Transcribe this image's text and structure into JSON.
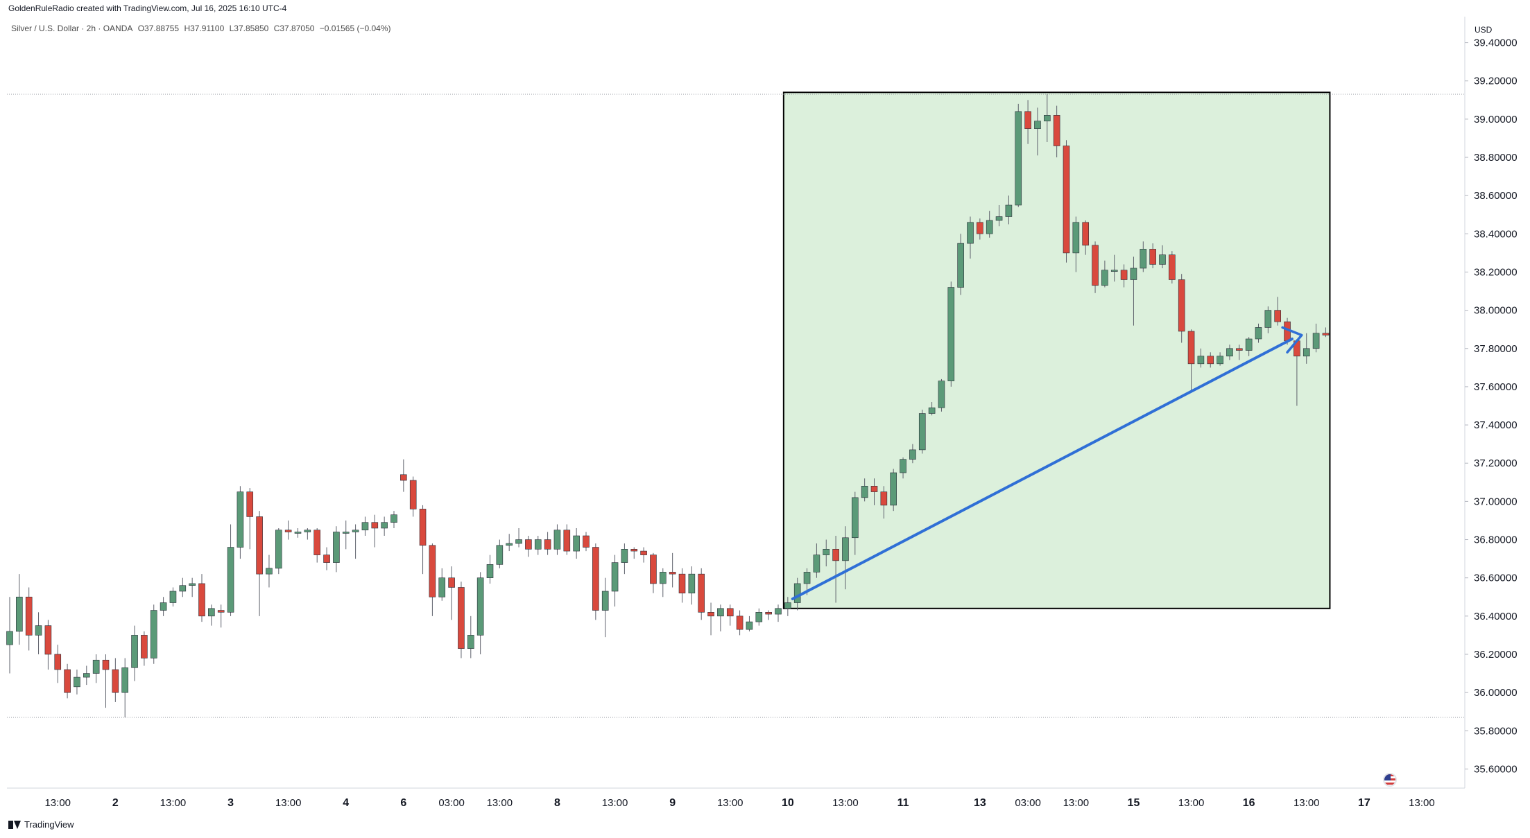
{
  "header": {
    "attribution": "GoldenRuleRadio created with TradingView.com, Jul 16, 2025 16:10 UTC-4",
    "symbol": "Silver / U.S. Dollar · 2h · OANDA",
    "open": "O37.88755",
    "high": "H37.91100",
    "low": "L37.85850",
    "close": "C37.87050",
    "change": "−0.01565 (−0.04%)"
  },
  "axis": {
    "unit": "USD"
  },
  "branding": {
    "label": "TradingView"
  },
  "colors": {
    "up": "#5b9a78",
    "down": "#d9493d",
    "zone_fill": "#dcf0dc",
    "trendline": "#2f6fd6"
  },
  "chart_data": {
    "type": "candlestick",
    "ylim": [
      35.5,
      39.5
    ],
    "y_ticks": [
      "39.40000",
      "39.20000",
      "39.00000",
      "38.80000",
      "38.60000",
      "38.40000",
      "38.20000",
      "38.00000",
      "37.80000",
      "37.60000",
      "37.40000",
      "37.20000",
      "37.00000",
      "36.80000",
      "36.60000",
      "36.40000",
      "36.20000",
      "36.00000",
      "35.80000",
      "35.60000"
    ],
    "x_ticks": [
      {
        "i": 5,
        "label": "13:00"
      },
      {
        "i": 11,
        "label": "2"
      },
      {
        "i": 17,
        "label": "13:00"
      },
      {
        "i": 23,
        "label": "3"
      },
      {
        "i": 29,
        "label": "13:00"
      },
      {
        "i": 35,
        "label": "4"
      },
      {
        "i": 41,
        "label": "6"
      },
      {
        "i": 46,
        "label": "03:00"
      },
      {
        "i": 51,
        "label": "13:00"
      },
      {
        "i": 57,
        "label": "8"
      },
      {
        "i": 63,
        "label": "13:00"
      },
      {
        "i": 69,
        "label": "9"
      },
      {
        "i": 75,
        "label": "13:00"
      },
      {
        "i": 81,
        "label": "10"
      },
      {
        "i": 87,
        "label": "13:00"
      },
      {
        "i": 93,
        "label": "11"
      },
      {
        "i": 101,
        "label": "13"
      },
      {
        "i": 106,
        "label": "03:00"
      },
      {
        "i": 111,
        "label": "13:00"
      },
      {
        "i": 117,
        "label": "15"
      },
      {
        "i": 123,
        "label": "13:00"
      },
      {
        "i": 129,
        "label": "16"
      },
      {
        "i": 135,
        "label": "13:00"
      },
      {
        "i": 141,
        "label": "17"
      },
      {
        "i": 147,
        "label": "13:00"
      }
    ],
    "reference_lines": [
      39.13,
      35.87
    ],
    "highlight_zone": {
      "from_index": 81,
      "to_index": 137,
      "low": 36.44,
      "high": 39.14
    },
    "trendline": {
      "from": [
        81.5,
        36.49
      ],
      "to": [
        133.5,
        37.85
      ],
      "arrow": [
        [
          132.5,
          37.91
        ],
        [
          134.5,
          37.87
        ],
        [
          133.0,
          37.78
        ]
      ]
    },
    "candles": [
      [
        36.25,
        36.32,
        36.5,
        36.1
      ],
      [
        36.32,
        36.5,
        36.62,
        36.25
      ],
      [
        36.5,
        36.3,
        36.55,
        36.22
      ],
      [
        36.3,
        36.35,
        36.42,
        36.2
      ],
      [
        36.35,
        36.2,
        36.38,
        36.12
      ],
      [
        36.2,
        36.12,
        36.25,
        36.05
      ],
      [
        36.12,
        36.0,
        36.15,
        35.97
      ],
      [
        36.03,
        36.08,
        36.12,
        35.99
      ],
      [
        36.08,
        36.1,
        36.14,
        36.04
      ],
      [
        36.1,
        36.17,
        36.2,
        36.05
      ],
      [
        36.17,
        36.12,
        36.2,
        35.92
      ],
      [
        36.12,
        36.0,
        36.18,
        35.95
      ],
      [
        36.0,
        36.13,
        36.18,
        35.87
      ],
      [
        36.13,
        36.3,
        36.35,
        36.06
      ],
      [
        36.3,
        36.18,
        36.32,
        36.14
      ],
      [
        36.18,
        36.43,
        36.46,
        36.15
      ],
      [
        36.43,
        36.47,
        36.5,
        36.4
      ],
      [
        36.47,
        36.53,
        36.55,
        36.45
      ],
      [
        36.53,
        36.56,
        36.6,
        36.5
      ],
      [
        36.56,
        36.57,
        36.6,
        36.5
      ],
      [
        36.57,
        36.4,
        36.62,
        36.37
      ],
      [
        36.4,
        36.44,
        36.46,
        36.35
      ],
      [
        36.43,
        36.42,
        36.46,
        36.34
      ],
      [
        36.42,
        36.76,
        36.88,
        36.4
      ],
      [
        36.76,
        37.05,
        37.08,
        36.7
      ],
      [
        37.05,
        36.92,
        37.07,
        36.75
      ],
      [
        36.92,
        36.62,
        36.95,
        36.4
      ],
      [
        36.62,
        36.65,
        36.72,
        36.55
      ],
      [
        36.65,
        36.85,
        36.86,
        36.62
      ],
      [
        36.85,
        36.84,
        36.9,
        36.8
      ],
      [
        36.84,
        36.84,
        36.86,
        36.81
      ],
      [
        36.84,
        36.85,
        36.86,
        36.8
      ],
      [
        36.85,
        36.72,
        36.86,
        36.68
      ],
      [
        36.72,
        36.68,
        36.76,
        36.64
      ],
      [
        36.68,
        36.84,
        36.87,
        36.63
      ],
      [
        36.84,
        36.84,
        36.9,
        36.75
      ],
      [
        36.84,
        36.85,
        36.88,
        36.7
      ],
      [
        36.85,
        36.89,
        36.92,
        36.82
      ],
      [
        36.89,
        36.86,
        36.93,
        36.76
      ],
      [
        36.86,
        36.89,
        36.92,
        36.82
      ],
      [
        36.89,
        36.93,
        36.95,
        36.86
      ],
      [
        37.14,
        37.11,
        37.22,
        37.05
      ],
      [
        37.11,
        36.96,
        37.13,
        36.92
      ],
      [
        36.96,
        36.77,
        36.98,
        36.62
      ],
      [
        36.77,
        36.5,
        36.78,
        36.4
      ],
      [
        36.5,
        36.6,
        36.65,
        36.48
      ],
      [
        36.6,
        36.55,
        36.66,
        36.38
      ],
      [
        36.55,
        36.23,
        36.58,
        36.18
      ],
      [
        36.23,
        36.3,
        36.4,
        36.18
      ],
      [
        36.3,
        36.6,
        36.63,
        36.2
      ],
      [
        36.6,
        36.67,
        36.72,
        36.57
      ],
      [
        36.67,
        36.77,
        36.8,
        36.65
      ],
      [
        36.77,
        36.78,
        36.83,
        36.74
      ],
      [
        36.78,
        36.8,
        36.86,
        36.76
      ],
      [
        36.8,
        36.75,
        36.82,
        36.71
      ],
      [
        36.75,
        36.8,
        36.82,
        36.72
      ],
      [
        36.8,
        36.75,
        36.84,
        36.72
      ],
      [
        36.75,
        36.85,
        36.88,
        36.72
      ],
      [
        36.85,
        36.74,
        36.88,
        36.72
      ],
      [
        36.74,
        36.82,
        36.86,
        36.7
      ],
      [
        36.82,
        36.76,
        36.84,
        36.74
      ],
      [
        36.76,
        36.43,
        36.78,
        36.38
      ],
      [
        36.43,
        36.53,
        36.6,
        36.29
      ],
      [
        36.53,
        36.68,
        36.72,
        36.45
      ],
      [
        36.68,
        36.75,
        36.78,
        36.62
      ],
      [
        36.75,
        36.74,
        36.76,
        36.7
      ],
      [
        36.74,
        36.72,
        36.76,
        36.68
      ],
      [
        36.72,
        36.57,
        36.73,
        36.52
      ],
      [
        36.57,
        36.63,
        36.65,
        36.5
      ],
      [
        36.63,
        36.62,
        36.73,
        36.55
      ],
      [
        36.62,
        36.52,
        36.65,
        36.47
      ],
      [
        36.52,
        36.62,
        36.66,
        36.46
      ],
      [
        36.62,
        36.42,
        36.65,
        36.38
      ],
      [
        36.42,
        36.4,
        36.47,
        36.3
      ],
      [
        36.4,
        36.44,
        36.46,
        36.32
      ],
      [
        36.44,
        36.4,
        36.46,
        36.35
      ],
      [
        36.4,
        36.33,
        36.43,
        36.3
      ],
      [
        36.33,
        36.37,
        36.4,
        36.32
      ],
      [
        36.37,
        36.42,
        36.44,
        36.35
      ],
      [
        36.42,
        36.41,
        36.43,
        36.38
      ],
      [
        36.41,
        36.44,
        36.46,
        36.37
      ],
      [
        36.44,
        36.47,
        36.5,
        36.4
      ],
      [
        36.47,
        36.57,
        36.6,
        36.43
      ],
      [
        36.57,
        36.63,
        36.65,
        36.51
      ],
      [
        36.63,
        36.72,
        36.78,
        36.6
      ],
      [
        36.72,
        36.75,
        36.8,
        36.66
      ],
      [
        36.75,
        36.69,
        36.82,
        36.47
      ],
      [
        36.69,
        36.81,
        36.87,
        36.54
      ],
      [
        36.81,
        37.02,
        37.05,
        36.72
      ],
      [
        37.02,
        37.08,
        37.12,
        37.0
      ],
      [
        37.08,
        37.05,
        37.12,
        36.98
      ],
      [
        37.05,
        36.98,
        37.08,
        36.91
      ],
      [
        36.98,
        37.15,
        37.17,
        36.95
      ],
      [
        37.15,
        37.22,
        37.23,
        37.12
      ],
      [
        37.22,
        37.27,
        37.3,
        37.2
      ],
      [
        37.27,
        37.46,
        37.48,
        37.25
      ],
      [
        37.46,
        37.49,
        37.52,
        37.45
      ],
      [
        37.49,
        37.63,
        37.64,
        37.47
      ],
      [
        37.63,
        38.12,
        38.15,
        37.6
      ],
      [
        38.12,
        38.35,
        38.4,
        38.08
      ],
      [
        38.35,
        38.46,
        38.49,
        38.27
      ],
      [
        38.46,
        38.4,
        38.48,
        38.37
      ],
      [
        38.4,
        38.47,
        38.52,
        38.38
      ],
      [
        38.47,
        38.49,
        38.55,
        38.44
      ],
      [
        38.49,
        38.55,
        38.6,
        38.45
      ],
      [
        38.55,
        39.04,
        39.08,
        38.54
      ],
      [
        39.04,
        38.95,
        39.1,
        38.87
      ],
      [
        38.95,
        38.99,
        39.06,
        38.81
      ],
      [
        38.99,
        39.02,
        39.13,
        38.88
      ],
      [
        39.02,
        38.86,
        39.07,
        38.8
      ],
      [
        38.86,
        38.3,
        38.89,
        38.25
      ],
      [
        38.3,
        38.46,
        38.49,
        38.2
      ],
      [
        38.46,
        38.34,
        38.47,
        38.29
      ],
      [
        38.34,
        38.13,
        38.36,
        38.09
      ],
      [
        38.13,
        38.21,
        38.26,
        38.12
      ],
      [
        38.21,
        38.21,
        38.29,
        38.15
      ],
      [
        38.21,
        38.16,
        38.24,
        38.12
      ],
      [
        38.16,
        38.22,
        38.28,
        37.92
      ],
      [
        38.22,
        38.32,
        38.36,
        38.2
      ],
      [
        38.32,
        38.24,
        38.35,
        38.22
      ],
      [
        38.24,
        38.29,
        38.34,
        38.22
      ],
      [
        38.29,
        38.16,
        38.31,
        38.14
      ],
      [
        38.16,
        37.89,
        38.19,
        37.83
      ],
      [
        37.89,
        37.72,
        37.9,
        37.58
      ],
      [
        37.72,
        37.76,
        37.8,
        37.7
      ],
      [
        37.76,
        37.72,
        37.78,
        37.7
      ],
      [
        37.72,
        37.76,
        37.78,
        37.71
      ],
      [
        37.76,
        37.8,
        37.82,
        37.74
      ],
      [
        37.8,
        37.79,
        37.82,
        37.74
      ],
      [
        37.79,
        37.85,
        37.86,
        37.76
      ],
      [
        37.85,
        37.91,
        37.93,
        37.83
      ],
      [
        37.91,
        38.0,
        38.02,
        37.88
      ],
      [
        38.0,
        37.94,
        38.07,
        37.92
      ],
      [
        37.94,
        37.84,
        37.96,
        37.82
      ],
      [
        37.84,
        37.76,
        37.85,
        37.5
      ],
      [
        37.76,
        37.8,
        37.88,
        37.72
      ],
      [
        37.8,
        37.88,
        37.93,
        37.78
      ],
      [
        37.88,
        37.87,
        37.91,
        37.86
      ]
    ]
  }
}
